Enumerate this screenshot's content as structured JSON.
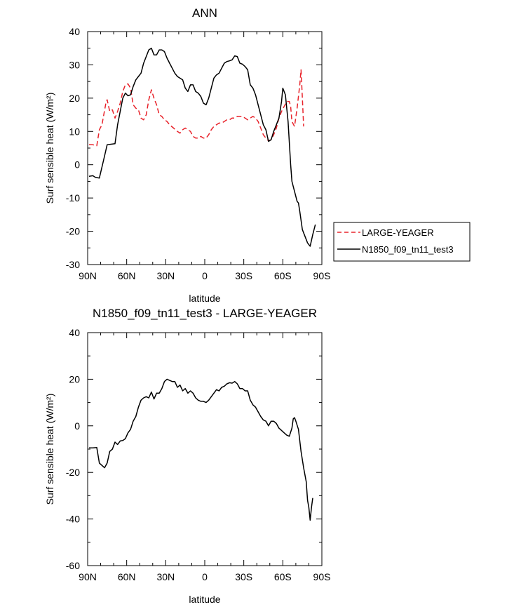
{
  "chart_data": [
    {
      "type": "line",
      "title": "ANN",
      "xlabel": "latitude",
      "ylabel": "Surf sensible heat (W/m²)",
      "x_ticks": [
        "90N",
        "60N",
        "30N",
        "0",
        "30S",
        "60S",
        "90S"
      ],
      "y_ticks": [
        "40",
        "30",
        "20",
        "10",
        "0",
        "-10",
        "-20",
        "-30"
      ],
      "xlim": [
        90,
        -90
      ],
      "ylim": [
        -30,
        40
      ],
      "legend": {
        "placement": "right",
        "entries": [
          "LARGE-YEAGER",
          "N1850_f09_tn11_test3"
        ]
      },
      "series": [
        {
          "name": "LARGE-YEAGER",
          "color": "#e8232b",
          "dash": "dashed",
          "points": [
            [
              89,
              6
            ],
            [
              86,
              6
            ],
            [
              83,
              5.7
            ],
            [
              81,
              10.5
            ],
            [
              79,
              12
            ],
            [
              76,
              18.5
            ],
            [
              75,
              19.5
            ],
            [
              73,
              16
            ],
            [
              71,
              16.5
            ],
            [
              69,
              14
            ],
            [
              67,
              16
            ],
            [
              65,
              18.5
            ],
            [
              63,
              22
            ],
            [
              61,
              24
            ],
            [
              59,
              24.3
            ],
            [
              57,
              23
            ],
            [
              55,
              18
            ],
            [
              53,
              17
            ],
            [
              51,
              16.5
            ],
            [
              49,
              14
            ],
            [
              47,
              13.5
            ],
            [
              45,
              15
            ],
            [
              43,
              19.5
            ],
            [
              41,
              22.5
            ],
            [
              39,
              20
            ],
            [
              37,
              18
            ],
            [
              35,
              15
            ],
            [
              33,
              14.5
            ],
            [
              31,
              13.5
            ],
            [
              29,
              13
            ],
            [
              27,
              12
            ],
            [
              24,
              11
            ],
            [
              21,
              10
            ],
            [
              19,
              9.5
            ],
            [
              17,
              10.5
            ],
            [
              15,
              11
            ],
            [
              13,
              10.5
            ],
            [
              11,
              10
            ],
            [
              9,
              8.5
            ],
            [
              7,
              8
            ],
            [
              5,
              8
            ],
            [
              3,
              8.5
            ],
            [
              1,
              8
            ],
            [
              -1,
              8
            ],
            [
              -3,
              9
            ],
            [
              -5,
              10.5
            ],
            [
              -7,
              11.5
            ],
            [
              -9,
              12
            ],
            [
              -11,
              12.5
            ],
            [
              -13,
              12.5
            ],
            [
              -15,
              13
            ],
            [
              -17,
              13.5
            ],
            [
              -19,
              13.5
            ],
            [
              -21,
              14
            ],
            [
              -23,
              14
            ],
            [
              -25,
              14.5
            ],
            [
              -27,
              14.5
            ],
            [
              -29,
              14.5
            ],
            [
              -31,
              14
            ],
            [
              -33,
              13.5
            ],
            [
              -35,
              14
            ],
            [
              -37,
              14.5
            ],
            [
              -39,
              14
            ],
            [
              -41,
              13
            ],
            [
              -43,
              11
            ],
            [
              -45,
              9
            ],
            [
              -47,
              8
            ],
            [
              -49,
              7.2
            ],
            [
              -51,
              7.5
            ],
            [
              -53,
              9
            ],
            [
              -55,
              11
            ],
            [
              -57,
              14
            ],
            [
              -59,
              16
            ],
            [
              -61,
              17.5
            ],
            [
              -63,
              19
            ],
            [
              -65,
              19
            ],
            [
              -66,
              17.5
            ],
            [
              -67,
              13
            ],
            [
              -69,
              11.5
            ],
            [
              -71,
              17
            ],
            [
              -73,
              24
            ],
            [
              -74,
              28.5
            ],
            [
              -75,
              20
            ],
            [
              -76,
              11.5
            ]
          ]
        },
        {
          "name": "N1850_f09_tn11_test3",
          "color": "#000000",
          "dash": "solid",
          "points": [
            [
              89,
              -3.5
            ],
            [
              86,
              -3.3
            ],
            [
              84,
              -3.8
            ],
            [
              81,
              -4
            ],
            [
              78,
              1
            ],
            [
              75,
              6
            ],
            [
              71,
              6.2
            ],
            [
              69,
              6.3
            ],
            [
              67,
              12
            ],
            [
              65,
              16
            ],
            [
              63,
              20
            ],
            [
              61,
              21.5
            ],
            [
              59,
              20.7
            ],
            [
              57,
              21
            ],
            [
              55,
              23.5
            ],
            [
              53,
              25.5
            ],
            [
              51,
              26.5
            ],
            [
              49,
              27.5
            ],
            [
              47,
              30.5
            ],
            [
              45,
              32.5
            ],
            [
              43,
              34.5
            ],
            [
              41,
              35
            ],
            [
              39,
              33
            ],
            [
              37,
              33
            ],
            [
              35,
              34.5
            ],
            [
              33,
              34.5
            ],
            [
              31,
              34
            ],
            [
              29,
              32
            ],
            [
              27,
              30.5
            ],
            [
              25,
              29
            ],
            [
              23,
              27.5
            ],
            [
              21,
              26.5
            ],
            [
              19,
              26
            ],
            [
              17,
              25.5
            ],
            [
              15,
              23
            ],
            [
              13,
              22
            ],
            [
              11,
              24
            ],
            [
              9,
              24
            ],
            [
              7,
              22
            ],
            [
              5,
              21.5
            ],
            [
              3,
              20.5
            ],
            [
              1,
              18.5
            ],
            [
              -1,
              18
            ],
            [
              -3,
              20
            ],
            [
              -5,
              23
            ],
            [
              -7,
              26
            ],
            [
              -9,
              27
            ],
            [
              -11,
              27.5
            ],
            [
              -13,
              29
            ],
            [
              -15,
              30.5
            ],
            [
              -17,
              31
            ],
            [
              -19,
              31.2
            ],
            [
              -21,
              31.5
            ],
            [
              -23,
              32.7
            ],
            [
              -25,
              32.5
            ],
            [
              -27,
              30.5
            ],
            [
              -29,
              30.2
            ],
            [
              -31,
              29.5
            ],
            [
              -33,
              28.5
            ],
            [
              -35,
              24
            ],
            [
              -37,
              23
            ],
            [
              -39,
              21
            ],
            [
              -41,
              18
            ],
            [
              -43,
              15
            ],
            [
              -45,
              12
            ],
            [
              -47,
              10.5
            ],
            [
              -49,
              7
            ],
            [
              -51,
              7.5
            ],
            [
              -53,
              10
            ],
            [
              -55,
              12
            ],
            [
              -57,
              14
            ],
            [
              -59,
              19
            ],
            [
              -60,
              23
            ],
            [
              -62,
              21
            ],
            [
              -64,
              13
            ],
            [
              -66,
              0
            ],
            [
              -67,
              -5
            ],
            [
              -69,
              -8
            ],
            [
              -71,
              -11
            ],
            [
              -72,
              -11.5
            ],
            [
              -73,
              -14
            ],
            [
              -75,
              -19.5
            ],
            [
              -77,
              -21.5
            ],
            [
              -79,
              -23.5
            ],
            [
              -81,
              -24.5
            ],
            [
              -83,
              -21
            ],
            [
              -85,
              -18
            ]
          ]
        }
      ]
    },
    {
      "type": "line",
      "title": "N1850_f09_tn11_test3 - LARGE-YEAGER",
      "xlabel": "latitude",
      "ylabel": "Surf sensible heat (W/m²)",
      "x_ticks": [
        "90N",
        "60N",
        "30N",
        "0",
        "30S",
        "60S",
        "90S"
      ],
      "y_ticks": [
        "40",
        "20",
        "0",
        "-20",
        "-40",
        "-60"
      ],
      "xlim": [
        90,
        -90
      ],
      "ylim": [
        -60,
        40
      ],
      "series": [
        {
          "color": "#000000",
          "dash": "solid",
          "points": [
            [
              89,
              -9.5
            ],
            [
              86,
              -9.5
            ],
            [
              83,
              -9.3
            ],
            [
              81,
              -16
            ],
            [
              77,
              -18
            ],
            [
              75,
              -16
            ],
            [
              73,
              -11
            ],
            [
              71,
              -10
            ],
            [
              69,
              -7
            ],
            [
              67,
              -8
            ],
            [
              65,
              -6.5
            ],
            [
              63,
              -6.3
            ],
            [
              61,
              -5.5
            ],
            [
              59,
              -3
            ],
            [
              57,
              -1.5
            ],
            [
              55,
              2
            ],
            [
              53,
              4
            ],
            [
              51,
              8
            ],
            [
              49,
              11
            ],
            [
              47,
              12
            ],
            [
              45,
              12.5
            ],
            [
              43,
              12
            ],
            [
              41,
              14.5
            ],
            [
              39,
              11.5
            ],
            [
              37,
              14
            ],
            [
              35,
              14
            ],
            [
              33,
              16
            ],
            [
              31,
              19
            ],
            [
              29,
              20
            ],
            [
              27,
              19.5
            ],
            [
              25,
              19
            ],
            [
              23,
              19
            ],
            [
              21,
              16.5
            ],
            [
              19,
              17.5
            ],
            [
              17,
              15
            ],
            [
              15,
              16
            ],
            [
              13,
              14
            ],
            [
              11,
              15
            ],
            [
              9,
              14
            ],
            [
              7,
              12
            ],
            [
              5,
              11
            ],
            [
              3,
              10.5
            ],
            [
              1,
              10.5
            ],
            [
              -1,
              10
            ],
            [
              -3,
              11
            ],
            [
              -5,
              12.5
            ],
            [
              -7,
              14
            ],
            [
              -9,
              15.5
            ],
            [
              -11,
              15
            ],
            [
              -13,
              16.5
            ],
            [
              -15,
              17
            ],
            [
              -17,
              18
            ],
            [
              -19,
              18.5
            ],
            [
              -21,
              18.3
            ],
            [
              -23,
              19
            ],
            [
              -25,
              18
            ],
            [
              -27,
              16
            ],
            [
              -29,
              16
            ],
            [
              -31,
              15
            ],
            [
              -33,
              15
            ],
            [
              -35,
              11
            ],
            [
              -37,
              9
            ],
            [
              -39,
              8
            ],
            [
              -41,
              6
            ],
            [
              -43,
              4
            ],
            [
              -45,
              2.5
            ],
            [
              -47,
              2
            ],
            [
              -49,
              0
            ],
            [
              -51,
              2
            ],
            [
              -53,
              2
            ],
            [
              -55,
              1
            ],
            [
              -57,
              -1
            ],
            [
              -59,
              -2
            ],
            [
              -61,
              -3
            ],
            [
              -63,
              -4
            ],
            [
              -65,
              -4.5
            ],
            [
              -67,
              -1
            ],
            [
              -68,
              3
            ],
            [
              -69,
              3.5
            ],
            [
              -70,
              2
            ],
            [
              -72,
              -1.5
            ],
            [
              -74,
              -11
            ],
            [
              -76,
              -18
            ],
            [
              -78,
              -24
            ],
            [
              -79,
              -32
            ],
            [
              -80,
              -35
            ],
            [
              -81,
              -40.5
            ],
            [
              -82,
              -35
            ],
            [
              -83,
              -31
            ]
          ]
        }
      ]
    }
  ]
}
